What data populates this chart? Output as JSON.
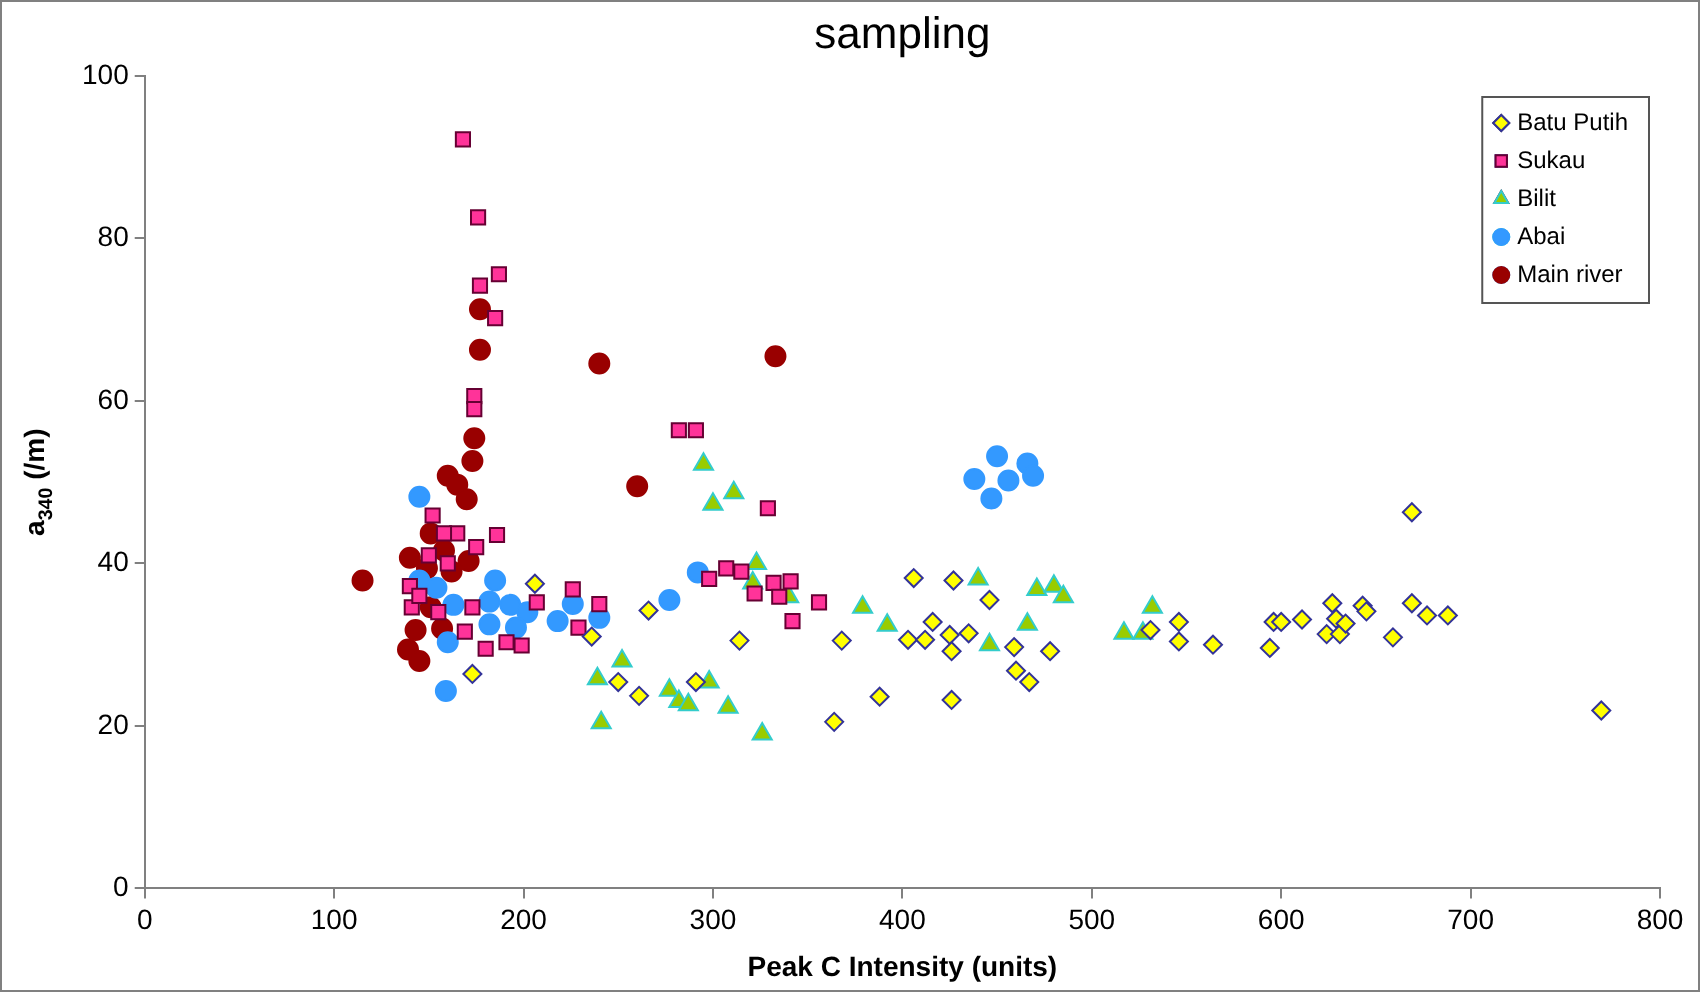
{
  "chart_data": {
    "type": "scatter",
    "title": "sampling",
    "xlabel": "Peak C Intensity (units)",
    "ylabel": "a$_{340}$ (/m)",
    "xlim": [
      0,
      800
    ],
    "xticks": [
      0,
      100,
      200,
      300,
      400,
      500,
      600,
      700,
      800
    ],
    "ylim": [
      0,
      100
    ],
    "yticks": [
      0,
      20,
      40,
      60,
      80,
      100
    ],
    "grid": false,
    "legend": "top right",
    "series": [
      {
        "name": "Batu Putih",
        "color": "#ffff00",
        "marker": "diamond",
        "x": [
          173,
          206,
          236,
          250,
          261,
          266,
          291,
          314,
          364,
          368,
          388,
          403,
          406,
          412,
          416,
          425,
          426,
          426,
          427,
          435,
          446,
          459,
          460,
          467,
          478,
          531,
          546,
          546,
          564,
          594,
          596,
          600,
          611,
          624,
          627,
          629,
          631,
          634,
          643,
          645,
          659,
          669,
          669,
          677,
          688,
          769
        ],
        "values": [
          26.4,
          37.5,
          31,
          25.4,
          23.7,
          34.2,
          25.4,
          30.5,
          20.5,
          30.5,
          23.6,
          30.6,
          38.2,
          30.6,
          32.8,
          31.2,
          29.2,
          23.2,
          37.9,
          31.4,
          35.5,
          29.7,
          26.8,
          25.4,
          29.2,
          31.8,
          32.8,
          30.4,
          30,
          29.6,
          32.8,
          32.8,
          33.1,
          31.3,
          35.1,
          33.2,
          31.3,
          32.6,
          34.8,
          34.1,
          30.9,
          46.3,
          35.1,
          33.6,
          33.6,
          21.9
        ]
      },
      {
        "name": "Sukau",
        "color": "#ff3399",
        "marker": "square",
        "x": [
          168,
          176,
          187,
          177,
          185,
          174,
          174,
          152,
          165,
          186,
          158,
          140,
          141,
          173,
          169,
          191,
          199,
          207,
          226,
          229,
          240,
          282,
          291,
          329,
          298,
          307,
          315,
          322,
          332,
          341,
          356,
          342,
          335,
          150,
          145,
          160,
          155,
          180,
          175
        ],
        "values": [
          92.2,
          82.6,
          75.6,
          74.2,
          70.2,
          60.6,
          59,
          45.9,
          43.7,
          43.5,
          43.7,
          37.2,
          34.6,
          34.6,
          31.6,
          30.3,
          29.9,
          35.2,
          36.8,
          32.1,
          35,
          56.4,
          56.4,
          46.8,
          38.1,
          39.4,
          39,
          36.3,
          37.6,
          37.8,
          35.2,
          32.9,
          35.9,
          41,
          36,
          40,
          34,
          29.5,
          42
        ]
      },
      {
        "name": "Bilit",
        "color": "#99cc00",
        "marker": "triangle",
        "x": [
          295,
          311,
          300,
          252,
          239,
          241,
          277,
          282,
          287,
          298,
          308,
          326,
          323,
          321,
          340,
          379,
          392,
          440,
          446,
          466,
          471,
          480,
          485,
          517,
          527,
          532
        ],
        "values": [
          52.2,
          48.7,
          47.3,
          28,
          25.8,
          20.4,
          24.4,
          23,
          22.6,
          25.4,
          22.3,
          19,
          40,
          37.6,
          35.9,
          34.6,
          32.4,
          38.1,
          30,
          32.5,
          36.8,
          37.2,
          35.9,
          31.4,
          31.4,
          34.6
        ]
      },
      {
        "name": "Abai",
        "color": "#3399ff",
        "marker": "circle",
        "x": [
          145,
          159,
          145,
          154,
          163,
          185,
          182,
          193,
          202,
          182,
          196,
          218,
          226,
          240,
          160,
          292,
          277,
          450,
          466,
          438,
          456,
          469,
          447
        ],
        "values": [
          48.2,
          24.3,
          37.9,
          37,
          34.9,
          37.9,
          35.3,
          34.9,
          34,
          32.5,
          32.1,
          32.9,
          35,
          33.3,
          30.3,
          38.9,
          35.5,
          53.2,
          52.3,
          50.4,
          50.2,
          50.8,
          48
        ]
      },
      {
        "name": "Main river",
        "color": "#990000",
        "marker": "circle",
        "x": [
          115,
          177,
          177,
          240,
          174,
          173,
          160,
          165,
          170,
          260,
          333,
          151,
          140,
          158,
          171,
          149,
          162,
          151,
          157,
          139,
          145,
          143
        ],
        "values": [
          37.9,
          71.3,
          66.3,
          64.6,
          55.4,
          52.6,
          50.8,
          49.7,
          47.9,
          49.5,
          65.5,
          43.7,
          40.7,
          41.6,
          40.3,
          39.4,
          39,
          34.6,
          32,
          29.4,
          28,
          31.8
        ]
      }
    ]
  }
}
